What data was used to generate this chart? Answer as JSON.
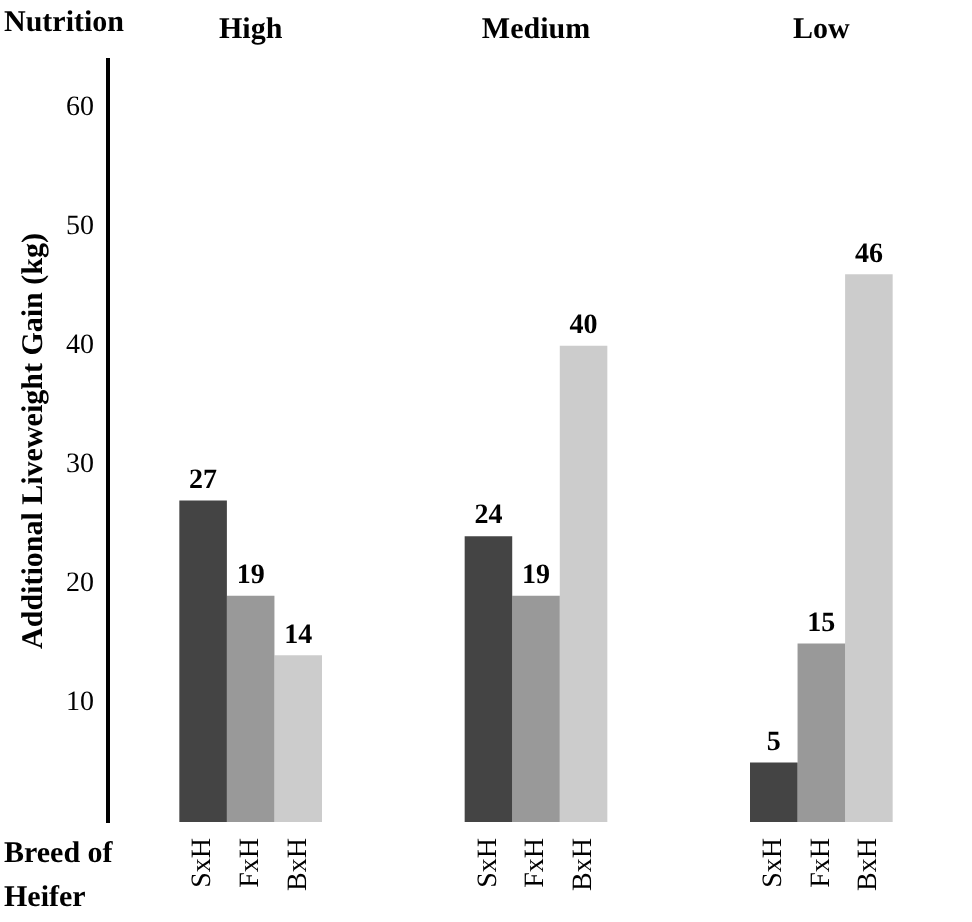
{
  "chart_data": {
    "type": "bar",
    "xlabel": "Nutrition",
    "ylabel": "Additional Liveweight Gain (kg)",
    "legend_title": "Breed of Heifer",
    "categories": [
      "High",
      "Medium",
      "Low"
    ],
    "series": [
      {
        "name": "SxH",
        "color": "#444444",
        "values": [
          27,
          24,
          5
        ]
      },
      {
        "name": "FxH",
        "color": "#999999",
        "values": [
          19,
          19,
          15
        ]
      },
      {
        "name": "BxH",
        "color": "#cccccc",
        "values": [
          14,
          40,
          46
        ]
      }
    ],
    "ylim": [
      0,
      64
    ],
    "yticks": [
      10,
      20,
      30,
      40,
      50,
      60
    ],
    "grid": false,
    "legend": "bottom",
    "data_labels": true
  }
}
